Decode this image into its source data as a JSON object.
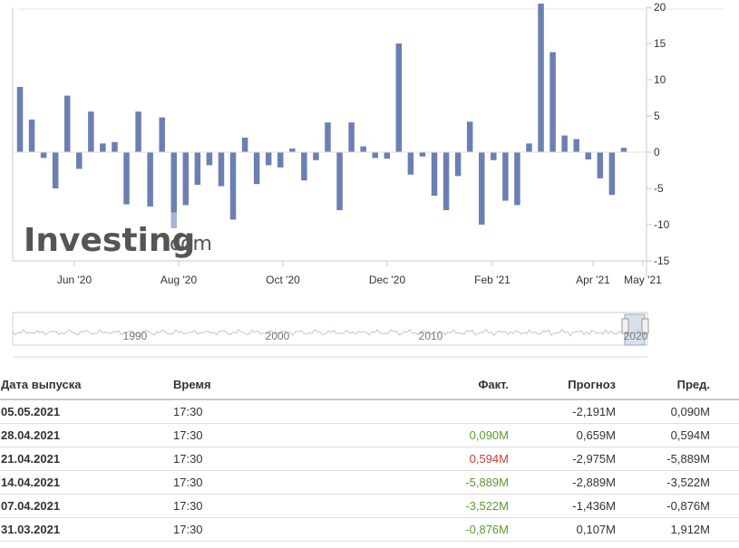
{
  "chart_data": {
    "type": "bar",
    "watermark": {
      "brand": "Investing",
      "suffix": ".com"
    },
    "x_labels": [
      "Jun '20",
      "Aug '20",
      "Oct '20",
      "Dec '20",
      "Feb '21",
      "Apr '21",
      "May '21"
    ],
    "y_ticks": [
      -15,
      -10,
      -5,
      0,
      5,
      10,
      15,
      20
    ],
    "y_tick_labels": [
      "-15",
      "-10",
      "-5",
      "0",
      "5",
      "10",
      "15",
      "20"
    ],
    "ylim": [
      -15,
      20
    ],
    "navigator_labels": [
      "1990",
      "2000",
      "2010",
      "2020"
    ],
    "bar_color": "#6b7fb2",
    "highlight_color": "#a7b3d3",
    "values": [
      9.0,
      4.5,
      -0.8,
      -5.0,
      7.8,
      -2.3,
      5.6,
      1.2,
      1.4,
      -7.2,
      5.6,
      -7.5,
      4.8,
      -10.5,
      -7.3,
      -4.5,
      -1.8,
      -4.7,
      -9.3,
      2.0,
      -4.4,
      -1.8,
      -2.1,
      0.5,
      -3.9,
      -1.1,
      4.1,
      -8.0,
      4.1,
      0.8,
      -0.8,
      -0.9,
      15.0,
      -3.1,
      -0.6,
      -6.0,
      -8.0,
      -3.3,
      4.2,
      -10.0,
      -1.1,
      -6.7,
      -7.3,
      1.2,
      20.5,
      13.8,
      2.3,
      1.8,
      -1.0,
      -3.6,
      -5.9,
      0.6
    ]
  },
  "table": {
    "headers": {
      "date": "Дата выпуска",
      "time": "Время",
      "actual": "Факт.",
      "forecast": "Прогноз",
      "previous": "Пред."
    },
    "rows": [
      {
        "date": "05.05.2021",
        "time": "17:30",
        "actual": "",
        "actual_class": "",
        "forecast": "-2,191M",
        "previous": "0,090M"
      },
      {
        "date": "28.04.2021",
        "time": "17:30",
        "actual": "0,090M",
        "actual_class": "pos",
        "forecast": "0,659M",
        "previous": "0,594M"
      },
      {
        "date": "21.04.2021",
        "time": "17:30",
        "actual": "0,594M",
        "actual_class": "neg",
        "forecast": "-2,975M",
        "previous": "-5,889M"
      },
      {
        "date": "14.04.2021",
        "time": "17:30",
        "actual": "-5,889M",
        "actual_class": "pos",
        "forecast": "-2,889M",
        "previous": "-3,522M"
      },
      {
        "date": "07.04.2021",
        "time": "17:30",
        "actual": "-3,522M",
        "actual_class": "pos",
        "forecast": "-1,436M",
        "previous": "-0,876M"
      },
      {
        "date": "31.03.2021",
        "time": "17:30",
        "actual": "-0,876M",
        "actual_class": "pos",
        "forecast": "0,107M",
        "previous": "1,912M"
      }
    ]
  }
}
